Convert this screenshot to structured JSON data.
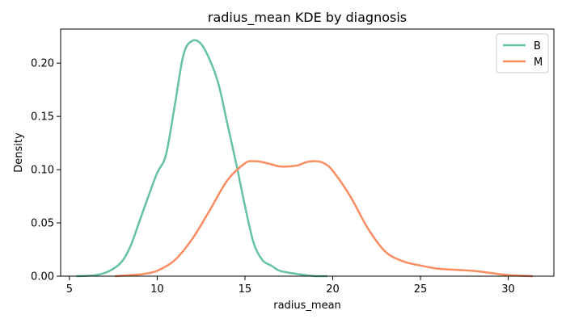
{
  "chart_data": {
    "type": "line",
    "title": "radius_mean KDE by diagnosis",
    "xlabel": "radius_mean",
    "ylabel": "Density",
    "xlim": [
      4.5,
      32.6
    ],
    "ylim": [
      0,
      0.232
    ],
    "xticks": [
      5,
      10,
      15,
      20,
      25,
      30
    ],
    "yticks": [
      0.0,
      0.05,
      0.1,
      0.15,
      0.2
    ],
    "ytick_labels": [
      "0.00",
      "0.05",
      "0.10",
      "0.15",
      "0.20"
    ],
    "grid": false,
    "legend_position": "top-right",
    "series": [
      {
        "name": "B",
        "color": "#66c2a5",
        "points": [
          [
            5.4,
            0.0
          ],
          [
            6.5,
            0.001
          ],
          [
            7.3,
            0.005
          ],
          [
            8.0,
            0.014
          ],
          [
            8.5,
            0.029
          ],
          [
            9.0,
            0.052
          ],
          [
            9.5,
            0.075
          ],
          [
            10.0,
            0.097
          ],
          [
            10.5,
            0.114
          ],
          [
            11.0,
            0.16
          ],
          [
            11.5,
            0.208
          ],
          [
            12.0,
            0.221
          ],
          [
            12.5,
            0.218
          ],
          [
            13.0,
            0.203
          ],
          [
            13.5,
            0.18
          ],
          [
            14.0,
            0.143
          ],
          [
            14.5,
            0.106
          ],
          [
            15.0,
            0.066
          ],
          [
            15.5,
            0.031
          ],
          [
            16.0,
            0.015
          ],
          [
            16.5,
            0.01
          ],
          [
            17.0,
            0.005
          ],
          [
            18.0,
            0.002
          ],
          [
            19.0,
            0.0
          ],
          [
            19.7,
            0.0
          ]
        ]
      },
      {
        "name": "M",
        "color": "#fc8d62",
        "points": [
          [
            7.6,
            0.0
          ],
          [
            8.5,
            0.001
          ],
          [
            9.2,
            0.002
          ],
          [
            10.0,
            0.005
          ],
          [
            11.0,
            0.015
          ],
          [
            12.0,
            0.035
          ],
          [
            13.0,
            0.062
          ],
          [
            14.0,
            0.09
          ],
          [
            15.0,
            0.106
          ],
          [
            15.5,
            0.108
          ],
          [
            16.0,
            0.107
          ],
          [
            16.5,
            0.105
          ],
          [
            17.0,
            0.103
          ],
          [
            17.5,
            0.103
          ],
          [
            18.0,
            0.104
          ],
          [
            18.5,
            0.107
          ],
          [
            19.0,
            0.108
          ],
          [
            19.5,
            0.106
          ],
          [
            20.0,
            0.099
          ],
          [
            21.0,
            0.075
          ],
          [
            22.0,
            0.045
          ],
          [
            23.0,
            0.023
          ],
          [
            24.0,
            0.014
          ],
          [
            25.0,
            0.01
          ],
          [
            26.0,
            0.007
          ],
          [
            27.0,
            0.006
          ],
          [
            28.0,
            0.005
          ],
          [
            29.0,
            0.003
          ],
          [
            30.0,
            0.001
          ],
          [
            31.4,
            0.0
          ]
        ]
      }
    ]
  }
}
